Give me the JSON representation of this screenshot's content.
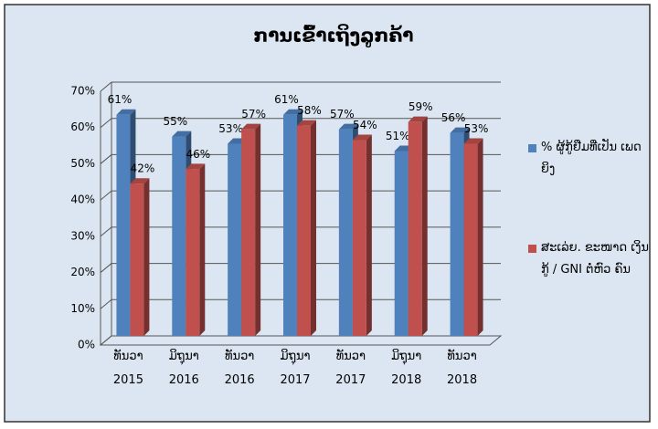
{
  "chart_data": {
    "type": "bar",
    "title": "ການເຂົ້າເຖິງລູກຄ້າ",
    "categories": [
      "ທັນວາ\n2015",
      "ມິຖຸນາ\n2016",
      "ທັນວາ\n2016",
      "ມິຖຸນາ\n2017",
      "ທັນວາ\n2017",
      "ມິຖຸນາ\n2018",
      "ທັນວາ\n2018"
    ],
    "series": [
      {
        "name": "% ຜູ້ກູ້ຢືມທີ່ເປັນ ເພດຍິງ",
        "color": "#4f81bd",
        "values": [
          61,
          55,
          53,
          61,
          57,
          51,
          56
        ],
        "value_labels": [
          "61%",
          "55%",
          "53%",
          "61%",
          "57%",
          "51%",
          "56%"
        ]
      },
      {
        "name": "ສະເລ່ຍ. ຂະໜາດ ເງິນກູ້ / GNI ຕໍ່ຫົວ ຄົນ",
        "color": "#c0504d",
        "values": [
          42,
          46,
          57,
          58,
          54,
          59,
          53
        ],
        "value_labels": [
          "42%",
          "46%",
          "57%",
          "58%",
          "54%",
          "59%",
          "53%"
        ]
      }
    ],
    "ylim": [
      0,
      70
    ],
    "yticks": [
      {
        "value": 0,
        "label": "0%"
      },
      {
        "value": 10,
        "label": "10%"
      },
      {
        "value": 20,
        "label": "20%"
      },
      {
        "value": 30,
        "label": "30%"
      },
      {
        "value": 40,
        "label": "40%"
      },
      {
        "value": 50,
        "label": "50%"
      },
      {
        "value": 60,
        "label": "60%"
      },
      {
        "value": 70,
        "label": "70%"
      }
    ],
    "grid": true,
    "legend": "right"
  }
}
